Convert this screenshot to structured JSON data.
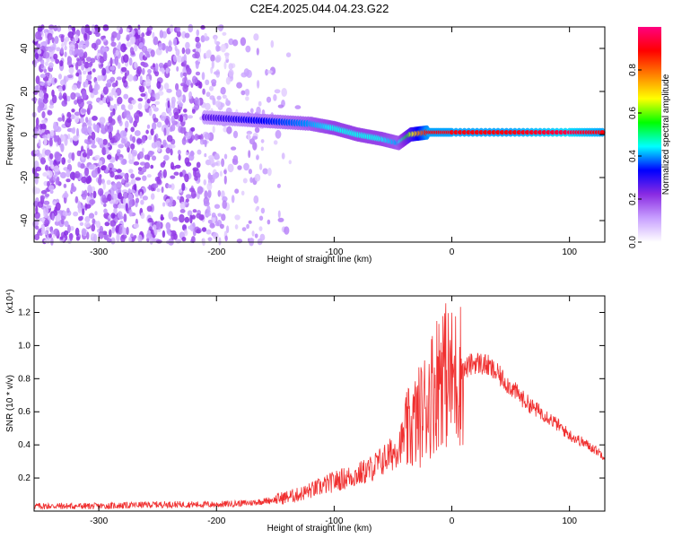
{
  "figure": {
    "title": "C2E4.2025.044.04.23.G22"
  },
  "chart_data": [
    {
      "type": "heatmap",
      "xlabel": "Height of straight line (km)",
      "ylabel": "Frequency (Hz)",
      "xlim": [
        -355,
        130
      ],
      "ylim": [
        -50,
        50
      ],
      "x_ticks": [
        -300,
        -200,
        -100,
        0,
        100
      ],
      "y_ticks": [
        -40,
        -20,
        0,
        20,
        40
      ],
      "colorbar": {
        "label": "Normalized spectral amplitude",
        "range": [
          0.0,
          1.0
        ],
        "ticks": [
          "0.0",
          "0.2",
          "0.4",
          "0.6",
          "0.8"
        ],
        "colors": [
          "#ffffff",
          "#c8a0ff",
          "#8a2be2",
          "#0000ff",
          "#00ffff",
          "#00ff00",
          "#ffff00",
          "#ff8000",
          "#ff0000",
          "#ff0080"
        ]
      },
      "ridge": {
        "x": [
          -210,
          -180,
          -150,
          -120,
          -100,
          -80,
          -60,
          -45,
          -35,
          -20,
          0,
          50,
          100,
          130
        ],
        "freq": [
          8,
          7,
          6,
          5,
          3,
          0,
          -2,
          -4,
          0,
          1,
          1,
          1,
          1,
          1
        ],
        "amplitude": [
          0.25,
          0.3,
          0.35,
          0.4,
          0.45,
          0.45,
          0.45,
          0.4,
          0.6,
          0.9,
          0.9,
          0.9,
          0.95,
          0.9
        ]
      },
      "grid": false
    },
    {
      "type": "line",
      "xlabel": "Height of straight line (km)",
      "ylabel": "SNR (10 * v/v)",
      "y_multiplier": "(x10⁴)",
      "xlim": [
        -355,
        130
      ],
      "ylim": [
        0,
        1.3
      ],
      "x_ticks": [
        -300,
        -200,
        -100,
        0,
        100
      ],
      "y_ticks": [
        "0.2",
        "0.4",
        "0.6",
        "0.8",
        "1.0",
        "1.2"
      ],
      "series": [
        {
          "color": "#f03030",
          "x": [
            -355,
            -300,
            -250,
            -200,
            -170,
            -150,
            -130,
            -110,
            -100,
            -90,
            -80,
            -70,
            -60,
            -50,
            -45,
            -40,
            -35,
            -30,
            -25,
            -20,
            -15,
            -12,
            -10,
            -8,
            -5,
            0,
            5,
            10,
            15,
            20,
            30,
            40,
            50,
            60,
            70,
            80,
            90,
            100,
            110,
            120,
            130
          ],
          "values": [
            0.03,
            0.03,
            0.04,
            0.04,
            0.05,
            0.07,
            0.1,
            0.15,
            0.18,
            0.2,
            0.22,
            0.25,
            0.3,
            0.35,
            0.4,
            0.45,
            0.5,
            0.55,
            0.6,
            0.68,
            0.75,
            0.8,
            0.85,
            0.9,
            0.82,
            0.8,
            0.82,
            0.85,
            0.88,
            0.9,
            0.88,
            0.82,
            0.75,
            0.68,
            0.62,
            0.58,
            0.52,
            0.46,
            0.42,
            0.38,
            0.33
          ]
        }
      ],
      "grid": false
    }
  ]
}
